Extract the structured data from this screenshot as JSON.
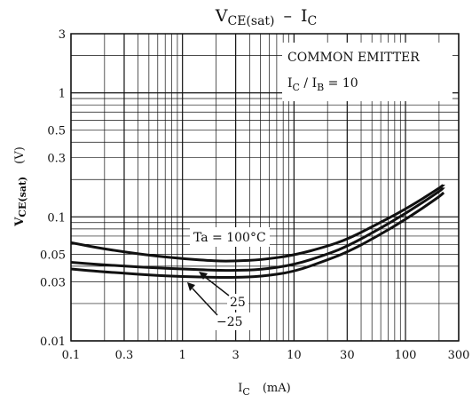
{
  "chart_data": {
    "type": "line",
    "title": {
      "main": "V",
      "sub": "CE(sat)",
      "dash": "–",
      "main2": "I",
      "sub2": "C"
    },
    "ylabel": {
      "main": "V",
      "sub": "CE(sat)",
      "unit": "(V)"
    },
    "xlabel": {
      "main": "I",
      "sub": "C",
      "unit": "(mA)"
    },
    "x_scale": "log",
    "y_scale": "log",
    "xlim": [
      0.1,
      300
    ],
    "ylim": [
      0.01,
      3
    ],
    "x_ticks": [
      0.1,
      0.3,
      1,
      3,
      10,
      30,
      100,
      300
    ],
    "x_tick_labels": [
      "0.1",
      "0.3",
      "1",
      "3",
      "10",
      "30",
      "100",
      "300"
    ],
    "y_ticks": [
      0.01,
      0.03,
      0.05,
      0.1,
      0.3,
      0.5,
      1,
      3
    ],
    "y_tick_labels": [
      "0.01",
      "0.03",
      "0.05",
      "0.1",
      "0.3",
      "0.5",
      "1",
      "3"
    ],
    "grid": true,
    "annotations": {
      "line1": "COMMON EMITTER",
      "line2": {
        "a": "I",
        "a_sub": "C",
        "slash": " / ",
        "b": "I",
        "b_sub": "B",
        "rest": " = 10"
      },
      "ta100": "Ta = 100°C",
      "ta25": "25",
      "tam25": "−25"
    },
    "series": [
      {
        "name": "Ta = 100°C",
        "x": [
          0.1,
          0.2,
          0.5,
          1,
          2,
          3,
          5,
          10,
          20,
          30,
          50,
          100,
          200,
          220
        ],
        "y": [
          0.062,
          0.055,
          0.049,
          0.046,
          0.044,
          0.044,
          0.045,
          0.049,
          0.058,
          0.066,
          0.083,
          0.115,
          0.17,
          0.182
        ]
      },
      {
        "name": "25",
        "x": [
          0.1,
          0.2,
          0.5,
          1,
          2,
          3,
          5,
          10,
          20,
          30,
          50,
          100,
          200,
          220
        ],
        "y": [
          0.043,
          0.041,
          0.039,
          0.038,
          0.037,
          0.037,
          0.0375,
          0.041,
          0.05,
          0.058,
          0.074,
          0.106,
          0.16,
          0.172
        ]
      },
      {
        "name": "−25",
        "x": [
          0.1,
          0.2,
          0.5,
          1,
          2,
          3,
          5,
          10,
          20,
          30,
          50,
          100,
          200,
          220
        ],
        "y": [
          0.038,
          0.036,
          0.034,
          0.033,
          0.0325,
          0.0325,
          0.033,
          0.036,
          0.045,
          0.052,
          0.066,
          0.095,
          0.145,
          0.157
        ]
      }
    ]
  }
}
